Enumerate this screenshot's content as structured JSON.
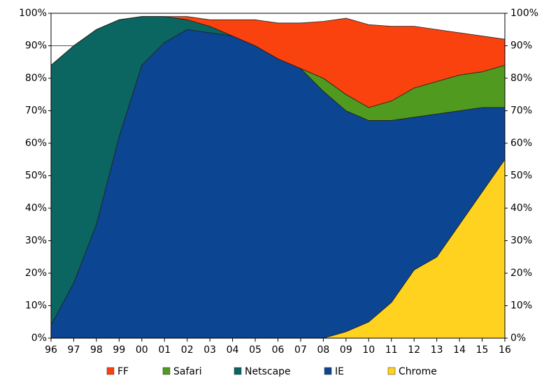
{
  "chart_data": {
    "type": "stacked_area",
    "categories": [
      "96",
      "97",
      "98",
      "99",
      "00",
      "01",
      "02",
      "03",
      "04",
      "05",
      "06",
      "07",
      "08",
      "09",
      "10",
      "11",
      "12",
      "13",
      "14",
      "15",
      "16"
    ],
    "series": [
      {
        "name": "FF",
        "color": "#f9420e",
        "values": [
          0,
          0,
          0,
          0,
          0,
          0,
          1,
          2,
          5,
          8,
          11,
          14,
          17.5,
          23.5,
          25.5,
          23,
          19,
          16,
          13,
          11,
          8
        ]
      },
      {
        "name": "Safari",
        "color": "#4f9a1f",
        "values": [
          0,
          0,
          0,
          0,
          0,
          0,
          0,
          0,
          0,
          0,
          0,
          0,
          4,
          5,
          4,
          6,
          9,
          10,
          11,
          11,
          13
        ]
      },
      {
        "name": "Netscape",
        "color": "#0b6560",
        "values": [
          80,
          73,
          60,
          36,
          15,
          8,
          3,
          2,
          0,
          0,
          0,
          0,
          0,
          0,
          0,
          0,
          0,
          0,
          0,
          0,
          0
        ]
      },
      {
        "name": "IE",
        "color": "#0c4592",
        "values": [
          4,
          17,
          35,
          62,
          84,
          91,
          95,
          94,
          93,
          90,
          86,
          83,
          76,
          68,
          62,
          56,
          47,
          44,
          35,
          26,
          16
        ]
      },
      {
        "name": "Chrome",
        "color": "#ffd21f",
        "values": [
          0,
          0,
          0,
          0,
          0,
          0,
          0,
          0,
          0,
          0,
          0,
          0,
          0,
          2,
          5,
          11,
          21,
          25,
          35,
          45,
          55
        ]
      }
    ],
    "ylim": [
      0,
      100
    ],
    "yticks": [
      {
        "value": 0,
        "label": "0%"
      },
      {
        "value": 10,
        "label": "10%"
      },
      {
        "value": 20,
        "label": "20%"
      },
      {
        "value": 30,
        "label": "30%"
      },
      {
        "value": 40,
        "label": "40%"
      },
      {
        "value": 50,
        "label": "50%"
      },
      {
        "value": 60,
        "label": "60%"
      },
      {
        "value": 70,
        "label": "70%"
      },
      {
        "value": 80,
        "label": "80%"
      },
      {
        "value": 90,
        "label": "90%"
      },
      {
        "value": 100,
        "label": "100%"
      }
    ],
    "grid": true,
    "legend": "bottom"
  }
}
